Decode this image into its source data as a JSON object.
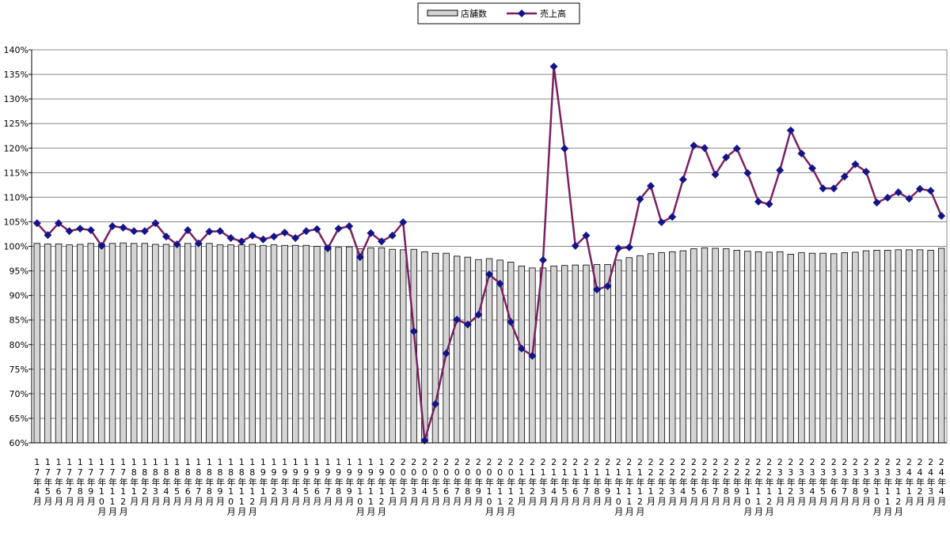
{
  "chart_data": {
    "type": "combo",
    "categories": [
      "17年4月",
      "17年5月",
      "17年6月",
      "17年7月",
      "17年8月",
      "17年9月",
      "17年10月",
      "17年11月",
      "17年12月",
      "18年1月",
      "18年2月",
      "18年3月",
      "18年4月",
      "18年5月",
      "18年6月",
      "18年7月",
      "18年8月",
      "18年9月",
      "18年10月",
      "18年11月",
      "18年12月",
      "19年1月",
      "19年2月",
      "19年3月",
      "19年4月",
      "19年5月",
      "19年6月",
      "19年7月",
      "19年8月",
      "19年9月",
      "19年10月",
      "19年11月",
      "19年12月",
      "20年1月",
      "20年2月",
      "20年3月",
      "20年4月",
      "20年5月",
      "20年6月",
      "20年7月",
      "20年8月",
      "20年9月",
      "20年10月",
      "20年11月",
      "20年12月",
      "21年1月",
      "21年2月",
      "21年3月",
      "21年4月",
      "21年5月",
      "21年6月",
      "21年7月",
      "21年8月",
      "21年9月",
      "21年10月",
      "21年11月",
      "21年12月",
      "22年1月",
      "22年2月",
      "22年3月",
      "22年4月",
      "22年5月",
      "22年6月",
      "22年7月",
      "22年8月",
      "22年9月",
      "22年10月",
      "22年11月",
      "22年12月",
      "23年1月",
      "23年2月",
      "23年3月",
      "23年4月",
      "23年5月",
      "23年6月",
      "23年7月",
      "23年8月",
      "23年9月",
      "23年10月",
      "23年11月",
      "23年12月",
      "24年1月",
      "24年2月",
      "24年3月",
      "24年4月"
    ],
    "series": [
      {
        "name": "店舗数",
        "type": "bar",
        "color": "#d4d4d4",
        "values": [
          100.6,
          100.5,
          100.5,
          100.3,
          100.4,
          100.6,
          100.5,
          100.6,
          100.7,
          100.6,
          100.6,
          100.4,
          100.4,
          100.5,
          100.6,
          100.5,
          100.6,
          100.3,
          100.3,
          100.3,
          100.4,
          100.2,
          100.3,
          100.2,
          100.2,
          100.2,
          100.0,
          100.0,
          99.8,
          99.9,
          99.5,
          99.7,
          99.7,
          99.4,
          99.3,
          99.4,
          98.9,
          98.6,
          98.6,
          98.0,
          97.8,
          97.3,
          97.5,
          97.2,
          96.8,
          96.0,
          95.6,
          95.6,
          96.0,
          96.1,
          96.2,
          96.2,
          96.3,
          96.3,
          97.2,
          97.7,
          98.1,
          98.5,
          98.7,
          98.9,
          99.1,
          99.5,
          99.7,
          99.6,
          99.5,
          99.2,
          99.0,
          98.9,
          98.8,
          98.9,
          98.4,
          98.7,
          98.6,
          98.6,
          98.5,
          98.7,
          98.8,
          99.1,
          99.2,
          99.2,
          99.3,
          99.3,
          99.3,
          99.2,
          99.6
        ]
      },
      {
        "name": "売上高",
        "type": "line",
        "color": "#7a2060",
        "marker_color": "#14148a",
        "values": [
          104.7,
          102.3,
          104.7,
          103.1,
          103.6,
          103.3,
          100.1,
          104.1,
          103.8,
          103.1,
          103.1,
          104.7,
          102.0,
          100.4,
          103.3,
          100.6,
          103.0,
          103.1,
          101.7,
          101.0,
          102.2,
          101.4,
          102.0,
          102.8,
          101.7,
          103.1,
          103.5,
          99.6,
          103.6,
          104.1,
          97.8,
          102.7,
          101.0,
          102.2,
          104.9,
          82.7,
          60.5,
          67.9,
          78.2,
          85.1,
          84.1,
          86.1,
          94.3,
          92.4,
          84.6,
          79.2,
          77.7,
          97.2,
          136.6,
          119.9,
          100.1,
          102.2,
          91.2,
          91.9,
          99.6,
          99.8,
          109.6,
          112.3,
          104.9,
          106.0,
          113.6,
          120.5,
          120.0,
          114.6,
          118.1,
          119.9,
          114.9,
          109.1,
          108.6,
          115.5,
          123.6,
          118.9,
          115.9,
          111.8,
          111.8,
          114.2,
          116.7,
          115.2,
          108.9,
          109.9,
          111.0,
          109.7,
          111.7,
          111.3,
          106.2
        ]
      }
    ],
    "ylim": [
      60,
      140
    ],
    "yticks": [
      {
        "value": 60,
        "label": "60%"
      },
      {
        "value": 65,
        "label": "65%"
      },
      {
        "value": 70,
        "label": "70%"
      },
      {
        "value": 75,
        "label": "75%"
      },
      {
        "value": 80,
        "label": "80%"
      },
      {
        "value": 85,
        "label": "85%"
      },
      {
        "value": 90,
        "label": "90%"
      },
      {
        "value": 95,
        "label": "95%"
      },
      {
        "value": 100,
        "label": "100%"
      },
      {
        "value": 105,
        "label": "105%"
      },
      {
        "value": 110,
        "label": "110%"
      },
      {
        "value": 115,
        "label": "115%"
      },
      {
        "value": 120,
        "label": "120%"
      },
      {
        "value": 125,
        "label": "125%"
      },
      {
        "value": 130,
        "label": "130%"
      },
      {
        "value": 135,
        "label": "135%"
      },
      {
        "value": 140,
        "label": "140%"
      }
    ],
    "grid": true,
    "legend": "top"
  }
}
